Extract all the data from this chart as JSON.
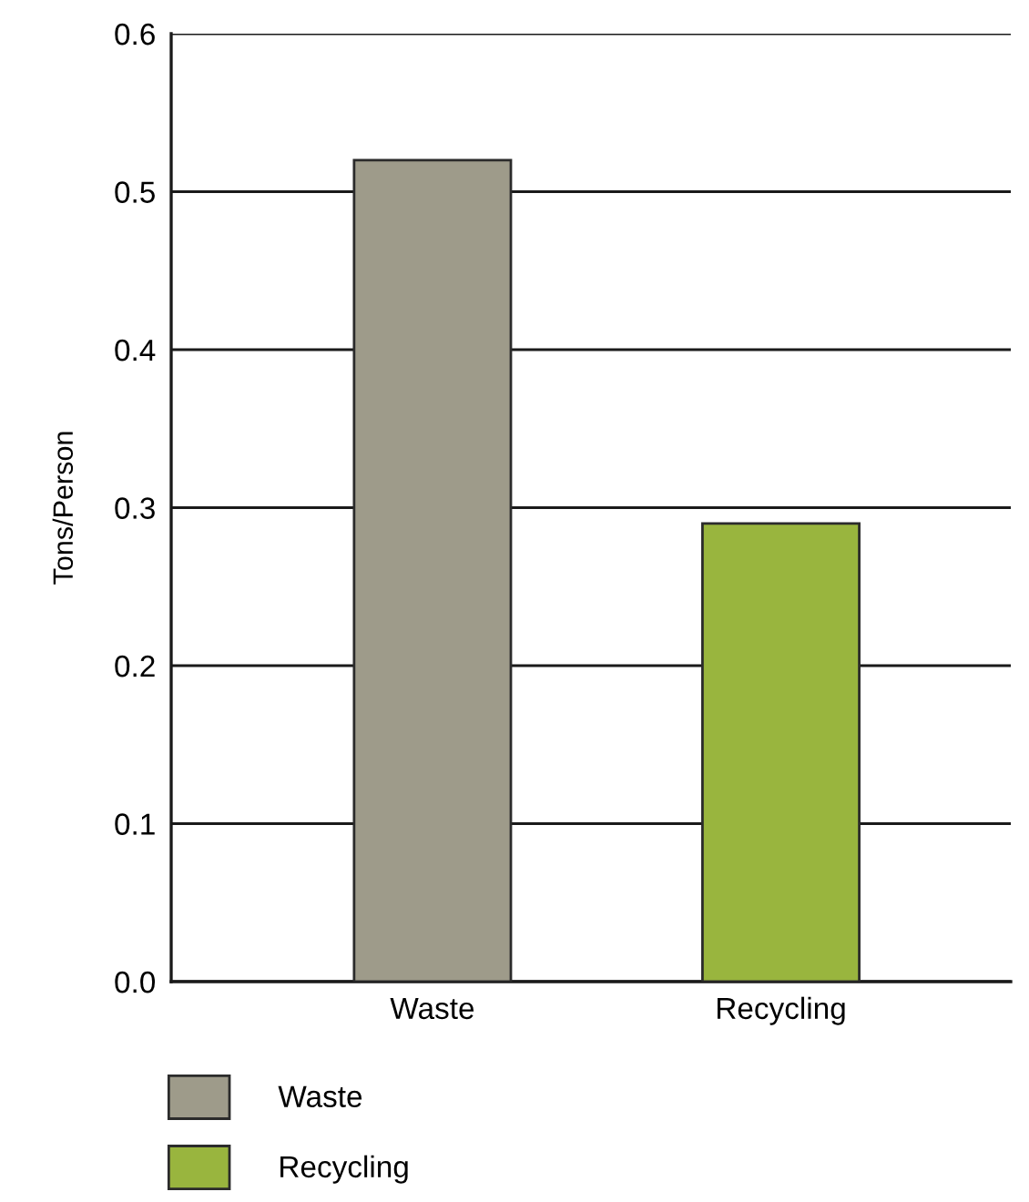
{
  "chart_data": {
    "type": "bar",
    "ylabel": "Tons/Person",
    "categories": [
      "Waste",
      "Recycling"
    ],
    "series": [
      {
        "name": "Waste",
        "color": "#9e9b8a",
        "values": [
          0.52,
          null
        ]
      },
      {
        "name": "Recycling",
        "color": "#99b53e",
        "values": [
          null,
          0.29
        ]
      }
    ],
    "ylim": [
      0,
      0.6
    ],
    "yticks": [
      {
        "value": 0,
        "label": "0.0"
      },
      0.1,
      0.2,
      0.3,
      0.4,
      0.5,
      0.6
    ],
    "grid": "y",
    "legend": "bottom"
  }
}
